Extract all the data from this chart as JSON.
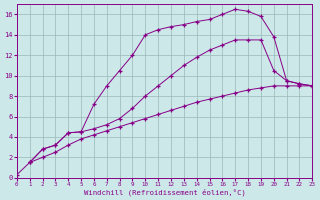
{
  "background_color": "#cce8e8",
  "line_color": "#880088",
  "grid_color": "#99b8b8",
  "series": [
    {
      "x": [
        1,
        2,
        3,
        4,
        5,
        6,
        7,
        8,
        9,
        10,
        11,
        12,
        13,
        14,
        15,
        16,
        17,
        18,
        19,
        20,
        21,
        22,
        23
      ],
      "y": [
        1.5,
        2.8,
        3.2,
        4.4,
        4.5,
        7.2,
        9.0,
        10.5,
        12.0,
        14.0,
        14.5,
        14.8,
        15.0,
        15.3,
        15.5,
        16.0,
        16.5,
        16.3,
        15.8,
        13.8,
        9.5,
        9.2,
        9.0
      ]
    },
    {
      "x": [
        1,
        2,
        3,
        4,
        5,
        6,
        7,
        8,
        9,
        10,
        11,
        12,
        13,
        14,
        15,
        16,
        17,
        18,
        19,
        20,
        21,
        22,
        23
      ],
      "y": [
        1.5,
        2.8,
        3.2,
        4.4,
        4.5,
        4.8,
        5.2,
        5.8,
        6.8,
        8.0,
        9.0,
        10.0,
        11.0,
        11.8,
        12.5,
        13.0,
        13.5,
        13.5,
        13.5,
        10.5,
        9.5,
        9.2,
        9.0
      ]
    },
    {
      "x": [
        0,
        1,
        2,
        3,
        4,
        5,
        6,
        7,
        8,
        9,
        10,
        11,
        12,
        13,
        14,
        15,
        16,
        17,
        18,
        19,
        20,
        21,
        22,
        23
      ],
      "y": [
        0.3,
        1.5,
        2.0,
        2.5,
        3.2,
        3.8,
        4.2,
        4.6,
        5.0,
        5.4,
        5.8,
        6.2,
        6.6,
        7.0,
        7.4,
        7.7,
        8.0,
        8.3,
        8.6,
        8.8,
        9.0,
        9.0,
        9.0,
        9.0
      ]
    }
  ],
  "xlim": [
    0,
    23
  ],
  "ylim": [
    0,
    17
  ],
  "xticks": [
    0,
    1,
    2,
    3,
    4,
    5,
    6,
    7,
    8,
    9,
    10,
    11,
    12,
    13,
    14,
    15,
    16,
    17,
    18,
    19,
    20,
    21,
    22,
    23
  ],
  "yticks": [
    0,
    2,
    4,
    6,
    8,
    10,
    12,
    14,
    16
  ],
  "xlabel": "Windchill (Refroidissement éolien,°C)"
}
